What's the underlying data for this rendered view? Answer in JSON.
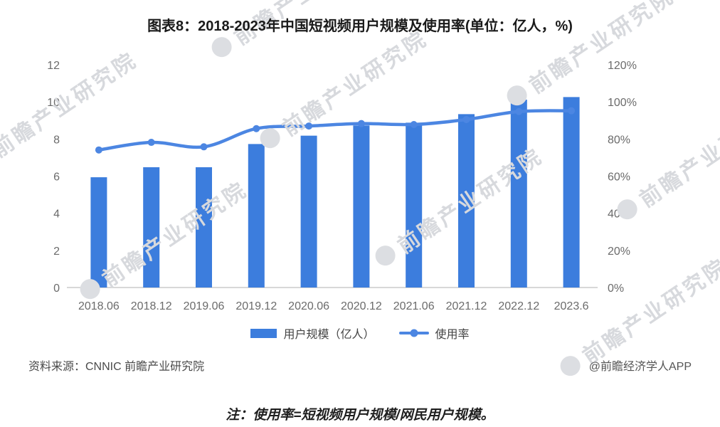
{
  "header": {
    "title": "图表8：2018-2023年中国短视频用户规模及使用率(单位：亿人，%)"
  },
  "watermark": {
    "text": "前瞻产业研究院"
  },
  "legend": [
    {
      "label": "用户规模（亿人）",
      "marker": "bar-swatch"
    },
    {
      "label": "使用率",
      "marker": "line-dot"
    }
  ],
  "footer": {
    "source": "资料来源：CNNIC 前瞻产业研究院",
    "credit": "@前瞻经济学人APP",
    "note": "注：使用率=短视频用户规模/网民用户规模。"
  },
  "colors": {
    "bar": "#3C7DDD",
    "line": "#4C86E2",
    "axis_text": "#6B6B6B",
    "baseline": "#CCCCCC",
    "watermark": "#D7D9DD"
  },
  "chart_data": {
    "type": "bar",
    "title": "图表8：2018-2023年中国短视频用户规模及使用率(单位：亿人，%)",
    "xlabel": "",
    "ylabel_left": "亿人",
    "ylabel_right": "%",
    "grid": false,
    "legend_position": "bottom",
    "categories": [
      "2018.06",
      "2018.12",
      "2019.06",
      "2019.12",
      "2020.06",
      "2020.12",
      "2021.06",
      "2021.12",
      "2022.12",
      "2023.6"
    ],
    "series": [
      {
        "name": "用户规模（亿人）",
        "type": "bar",
        "axis": "left",
        "values": [
          5.94,
          6.48,
          6.48,
          7.73,
          8.18,
          8.73,
          8.88,
          9.34,
          10.12,
          10.26
        ]
      },
      {
        "name": "使用率",
        "type": "line",
        "axis": "right",
        "values": [
          74.1,
          78.2,
          75.8,
          85.6,
          87.0,
          88.3,
          87.8,
          90.5,
          94.8,
          95.2
        ]
      }
    ],
    "left_axis": {
      "ticks": [
        0,
        2,
        4,
        6,
        8,
        10,
        12
      ],
      "min": 0,
      "max": 12
    },
    "right_axis": {
      "ticks": [
        "0%",
        "20%",
        "40%",
        "60%",
        "80%",
        "100%",
        "120%"
      ],
      "min": 0,
      "max": 120
    }
  }
}
